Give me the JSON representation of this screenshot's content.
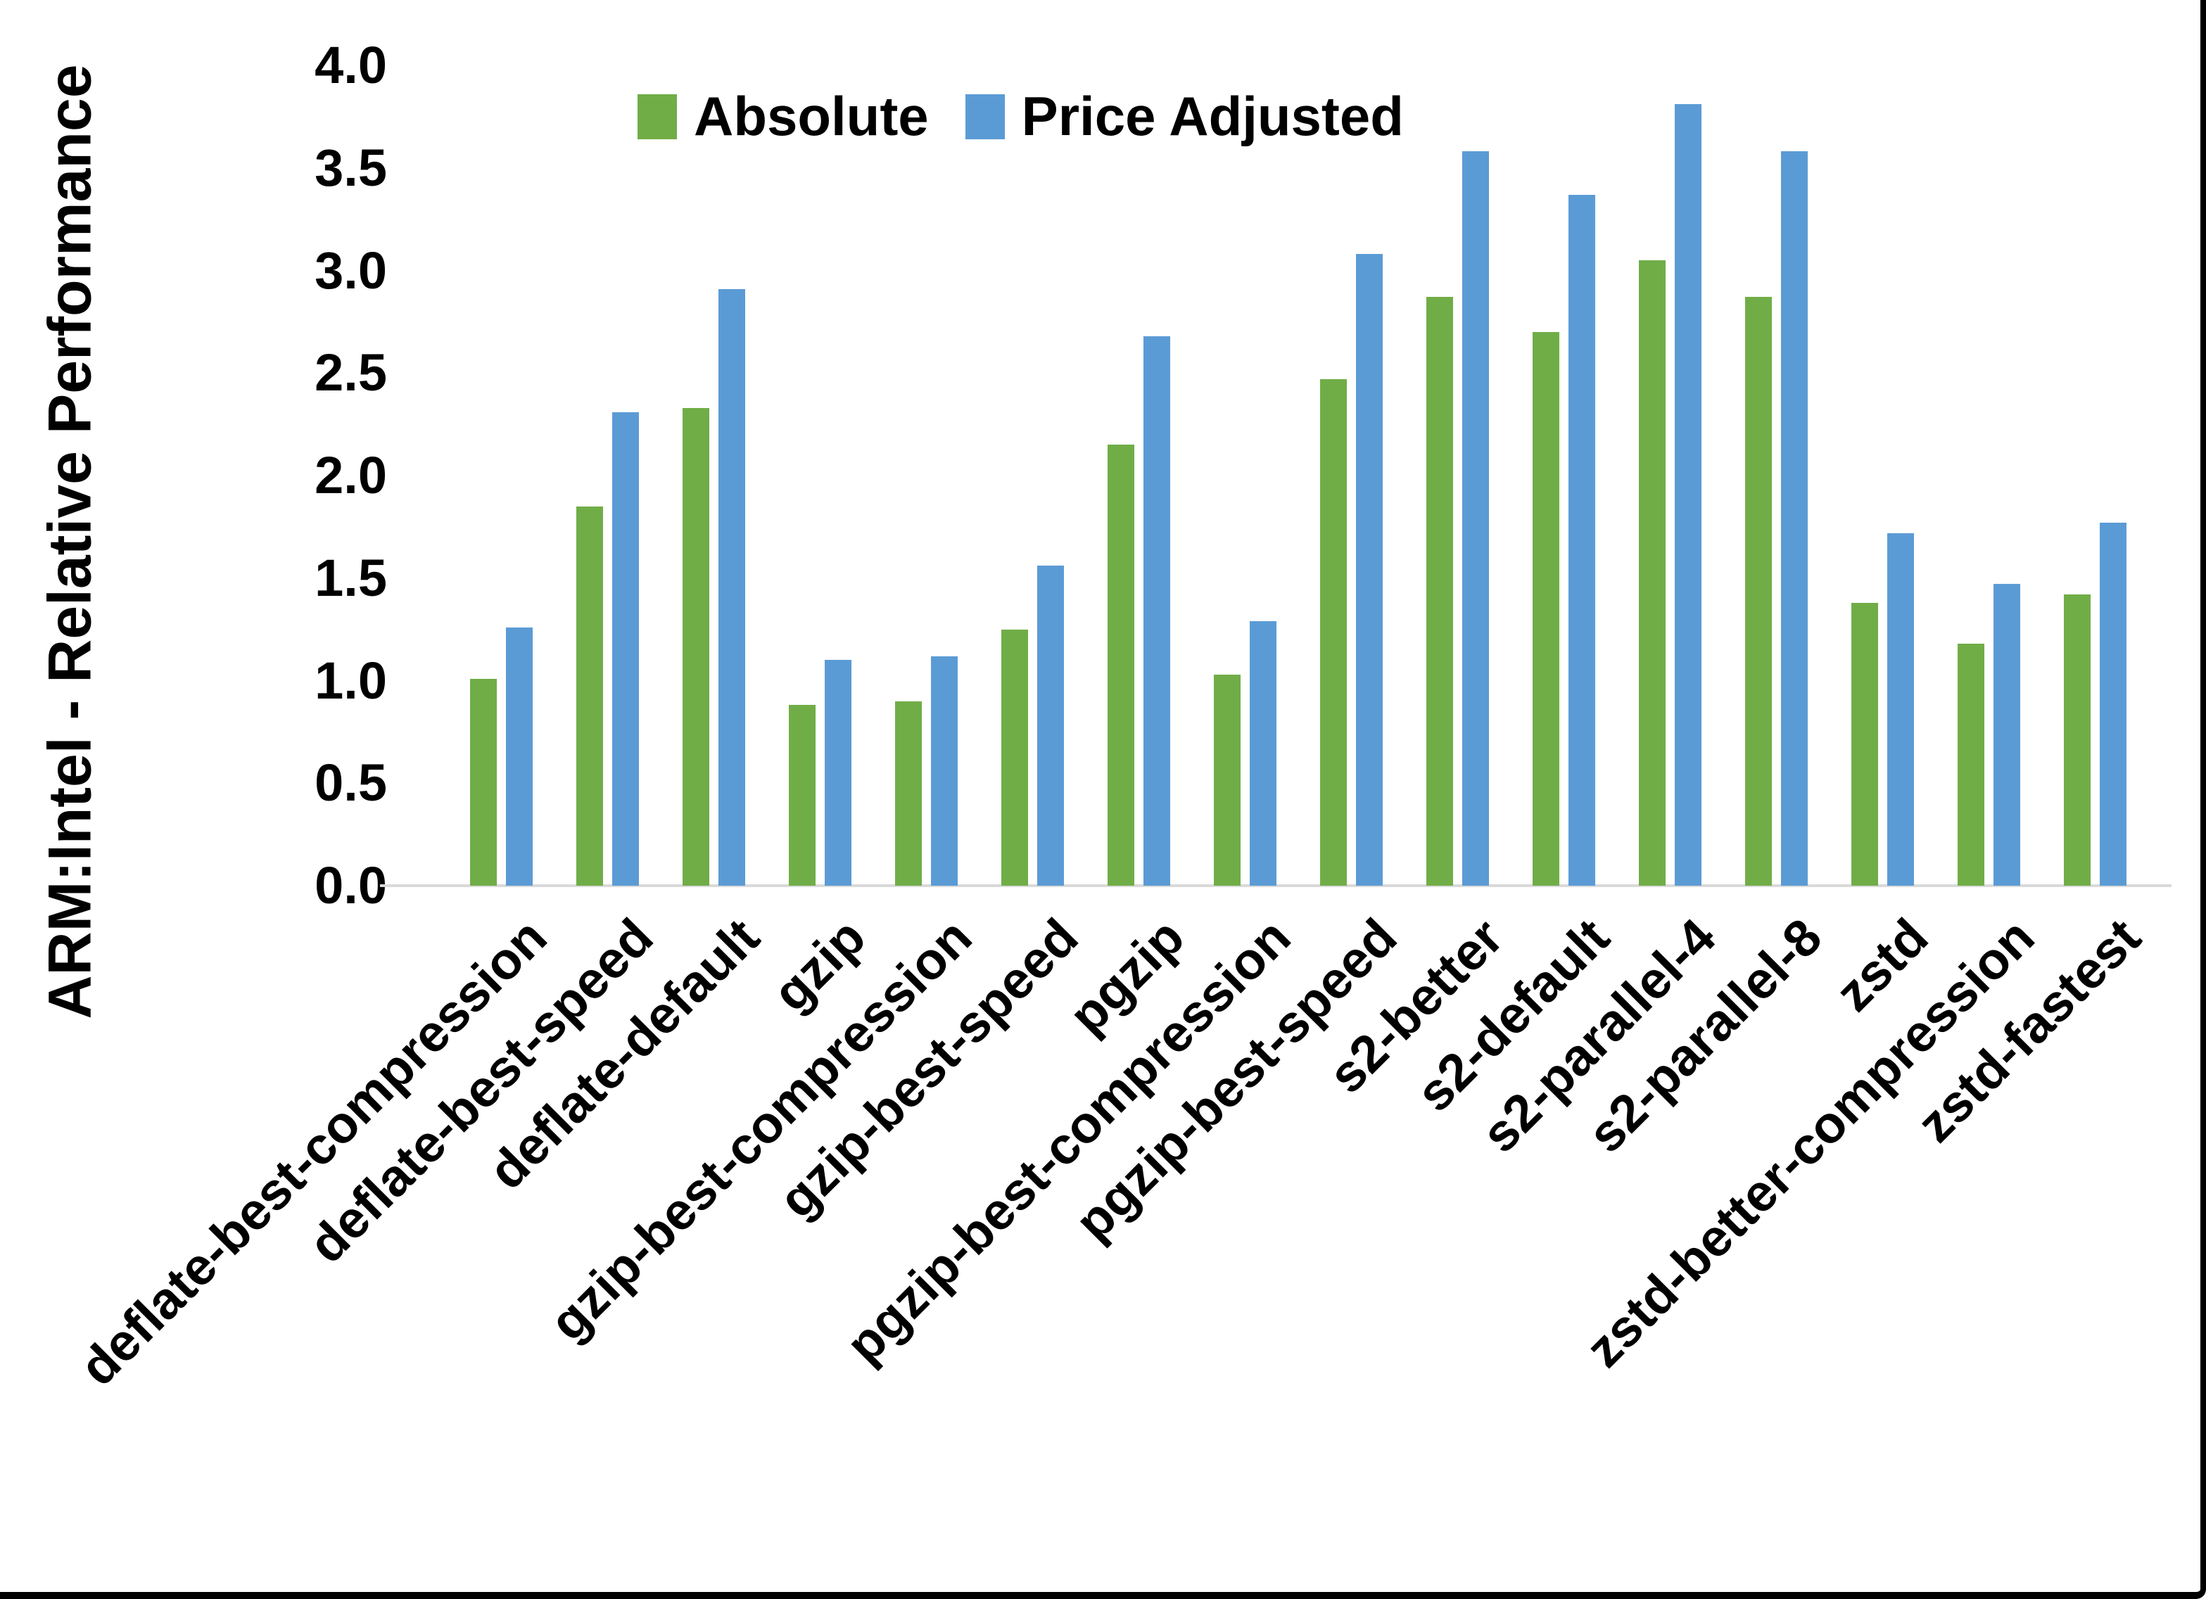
{
  "y_axis": {
    "title": "ARM:Intel - Relative Performance",
    "tick_labels": [
      "4.0",
      "3.5",
      "3.0",
      "2.5",
      "2.0",
      "1.5",
      "1.0",
      "0.5",
      "0.0"
    ]
  },
  "legend": {
    "items": [
      {
        "label": "Absolute",
        "color": "#70AD47"
      },
      {
        "label": "Price Adjusted",
        "color": "#5B9BD5"
      }
    ]
  },
  "colors": {
    "absolute_green": "#70AD47",
    "price_adjusted_blue": "#5B9BD5",
    "axis_line": "#D9D9D9",
    "text": "#000000",
    "frame_border": "#000000"
  },
  "chart_data": {
    "type": "bar",
    "title": "",
    "xlabel": "",
    "ylabel": "ARM:Intel - Relative Performance",
    "ylim": [
      0,
      4
    ],
    "ytick_step": 0.5,
    "grid": false,
    "legend_position": "top-center",
    "categories": [
      "deflate-best-compression",
      "deflate-best-speed",
      "deflate-default",
      "gzip",
      "gzip-best-compression",
      "gzip-best-speed",
      "pgzip",
      "pgzip-best-compression",
      "pgzip-best-speed",
      "s2-better",
      "s2-default",
      "s2-parallel-4",
      "s2-parallel-8",
      "zstd",
      "zstd-better-compression",
      "zstd-fastest"
    ],
    "series": [
      {
        "name": "Absolute",
        "color": "#70AD47",
        "values": [
          1.01,
          1.85,
          2.33,
          0.88,
          0.9,
          1.25,
          2.15,
          1.03,
          2.47,
          2.87,
          2.7,
          3.05,
          2.87,
          1.38,
          1.18,
          1.42
        ]
      },
      {
        "name": "Price Adjusted",
        "color": "#5B9BD5",
        "values": [
          1.26,
          2.31,
          2.91,
          1.1,
          1.12,
          1.56,
          2.68,
          1.29,
          3.08,
          3.58,
          3.37,
          3.81,
          3.58,
          1.72,
          1.47,
          1.77
        ]
      }
    ]
  }
}
